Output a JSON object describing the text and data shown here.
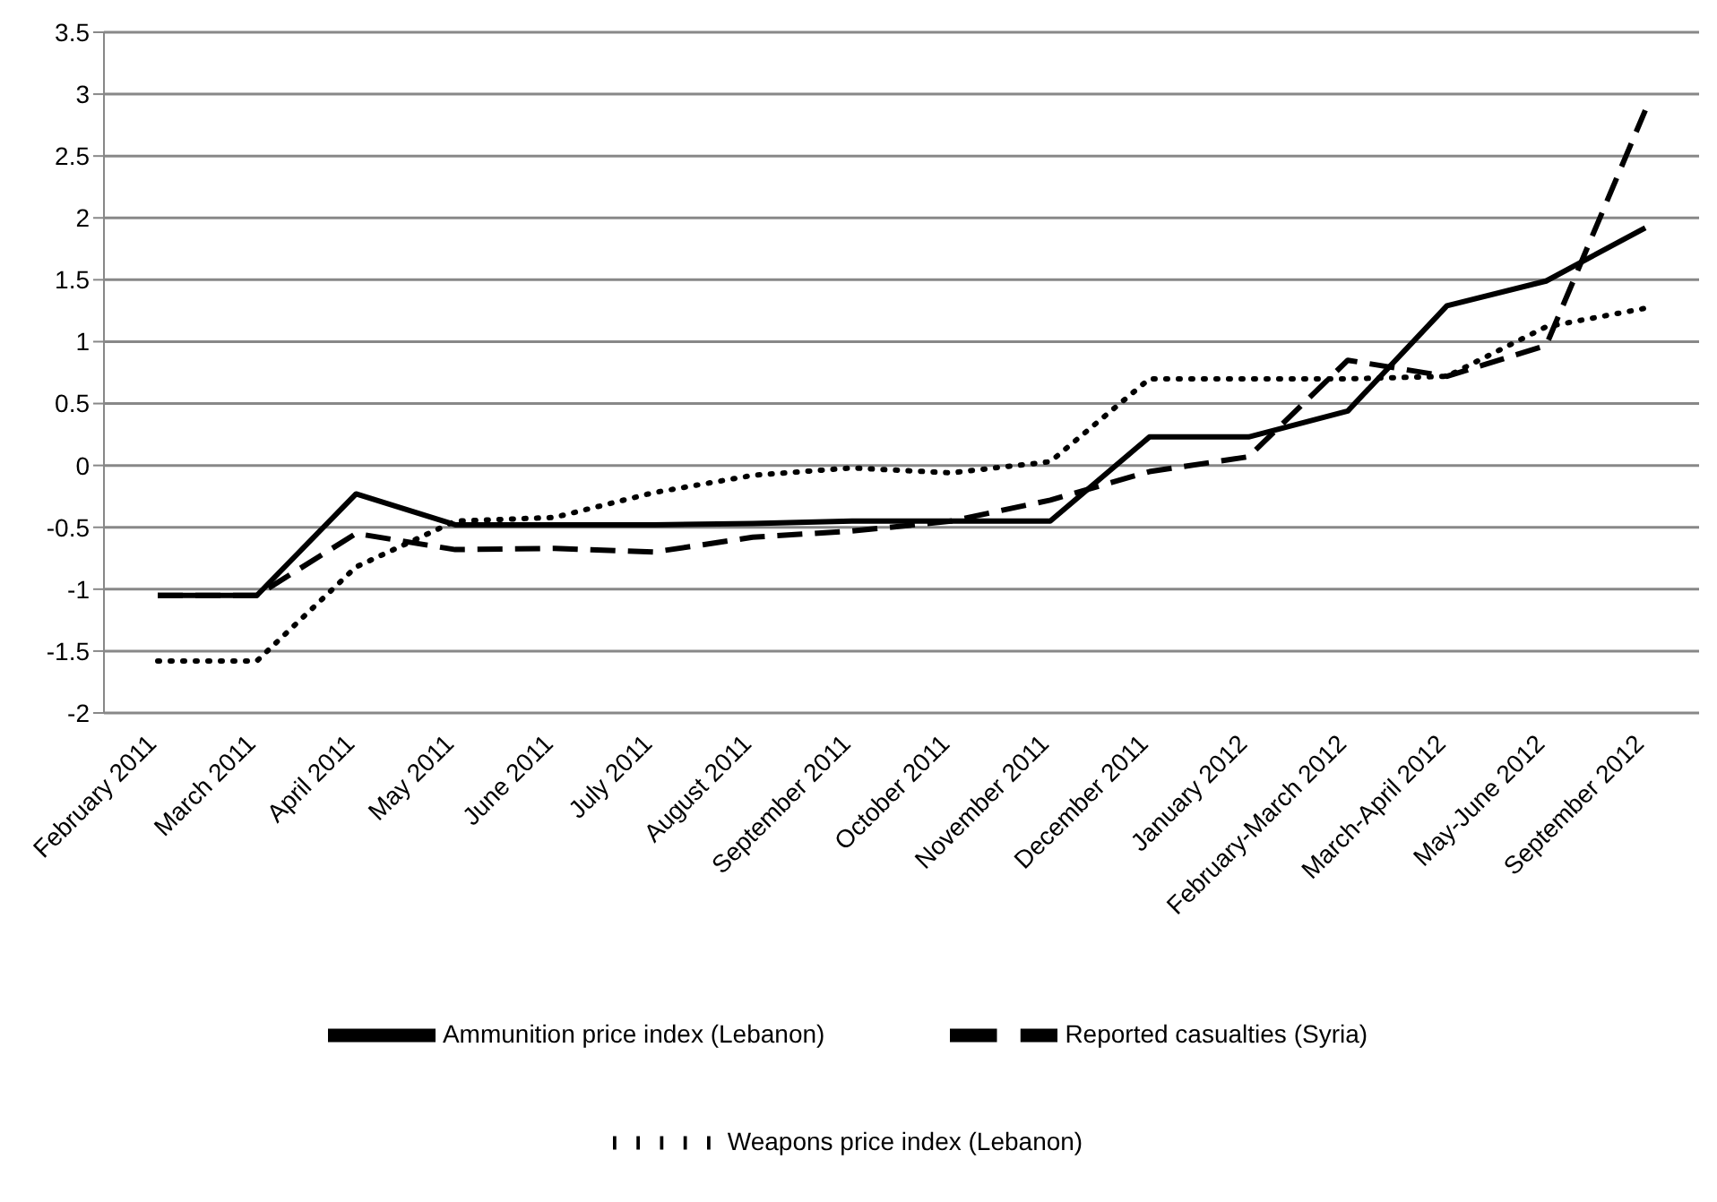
{
  "chart_data": {
    "type": "line",
    "categories": [
      "February 2011",
      "March 2011",
      "April 2011",
      "May 2011",
      "June 2011",
      "July 2011",
      "August 2011",
      "September 2011",
      "October 2011",
      "November 2011",
      "December 2011",
      "January 2012",
      "February-March 2012",
      "March-April 2012",
      "May-June 2012",
      "September 2012"
    ],
    "series": [
      {
        "name": "Reported casualties (Syria)",
        "color": "#000000",
        "line_style": "dashed",
        "values": [
          -1.05,
          -1.05,
          -0.55,
          -0.68,
          -0.67,
          -0.7,
          -0.58,
          -0.53,
          -0.45,
          -0.28,
          -0.05,
          0.07,
          0.85,
          0.72,
          0.97,
          2.87
        ]
      },
      {
        "name": "Ammunition price index (Lebanon)",
        "color": "#000000",
        "line_style": "solid",
        "values": [
          -1.05,
          -1.05,
          -0.23,
          -0.48,
          -0.48,
          -0.48,
          -0.47,
          -0.45,
          -0.45,
          -0.45,
          0.23,
          0.23,
          0.44,
          1.29,
          1.49,
          1.92
        ]
      },
      {
        "name": "Weapons price index (Lebanon)",
        "color": "#000000",
        "line_style": "dotted",
        "values": [
          -1.58,
          -1.58,
          -0.82,
          -0.45,
          -0.42,
          -0.22,
          -0.08,
          -0.02,
          -0.06,
          0.03,
          0.7,
          0.7,
          0.7,
          0.72,
          1.12,
          1.27
        ]
      }
    ],
    "ylim": [
      -2,
      3.5
    ],
    "yticks": [
      -2,
      -1.5,
      -1,
      -0.5,
      0,
      0.5,
      1,
      1.5,
      2,
      2.5,
      3,
      3.5
    ],
    "grid": "y",
    "legend": "bottom",
    "marker": "none"
  }
}
